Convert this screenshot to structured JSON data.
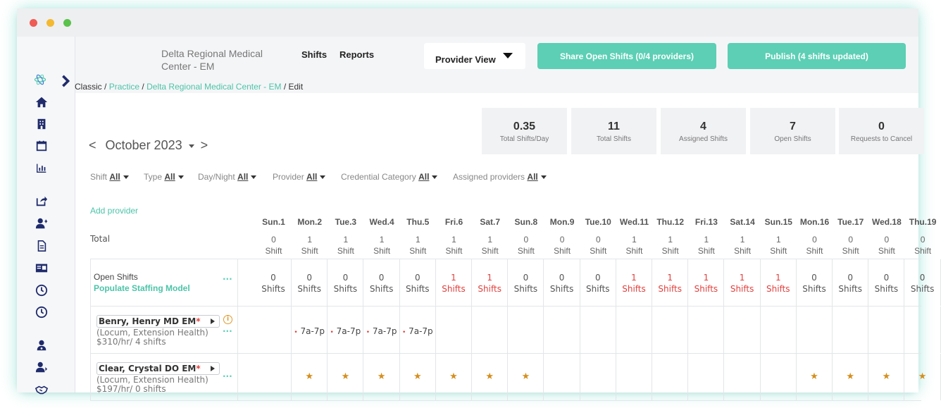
{
  "window_dots": [
    "#ee5c54",
    "#f3b930",
    "#59c24a"
  ],
  "header": {
    "org_name": "Delta Regional Medical Center - EM",
    "nav": [
      "Shifts",
      "Reports"
    ],
    "view_select": "Provider View",
    "share_button": "Share Open Shifts (0/4 providers)",
    "publish_button": "Publish (4 shifts updated)"
  },
  "breadcrumb": {
    "root": "Classic",
    "sep": " / ",
    "practice": "Practice",
    "center": "Delta Regional Medical Center - EM",
    "current": "Edit"
  },
  "stats": [
    {
      "value": "0.35",
      "label": "Total Shifts/Day"
    },
    {
      "value": "11",
      "label": "Total Shifts"
    },
    {
      "value": "4",
      "label": "Assigned Shifts"
    },
    {
      "value": "7",
      "label": "Open Shifts"
    },
    {
      "value": "0",
      "label": "Requests to Cancel"
    }
  ],
  "calendar": {
    "month": "October 2023",
    "prev": "<",
    "next": ">"
  },
  "filters": [
    {
      "label": "Shift",
      "value": "All"
    },
    {
      "label": "Type",
      "value": "All"
    },
    {
      "label": "Day/Night",
      "value": "All"
    },
    {
      "label": "Provider",
      "value": "All"
    },
    {
      "label": "Credential Category",
      "value": "All"
    },
    {
      "label": "Assigned providers",
      "value": "All"
    }
  ],
  "add_provider": "Add provider",
  "days": [
    "Sun.1",
    "Mon.2",
    "Tue.3",
    "Wed.4",
    "Thu.5",
    "Fri.6",
    "Sat.7",
    "Sun.8",
    "Mon.9",
    "Tue.10",
    "Wed.11",
    "Thu.12",
    "Fri.13",
    "Sat.14",
    "Sun.15",
    "Mon.16",
    "Tue.17",
    "Wed.18",
    "Thu.19"
  ],
  "totals": {
    "label": "Total",
    "values": [
      "0",
      "1",
      "1",
      "1",
      "1",
      "1",
      "1",
      "0",
      "0",
      "0",
      "1",
      "1",
      "1",
      "1",
      "1",
      "0",
      "0",
      "0",
      "0"
    ],
    "unit": "Shift"
  },
  "open_shifts": {
    "label": "Open Shifts",
    "action": "Populate Staffing Model",
    "more": "...",
    "values": [
      "0",
      "0",
      "0",
      "0",
      "0",
      "1",
      "1",
      "0",
      "0",
      "0",
      "1",
      "1",
      "1",
      "1",
      "1",
      "0",
      "0",
      "0",
      "0"
    ],
    "unit": "Shifts",
    "highlight_color": "#e0413e"
  },
  "providers": [
    {
      "name": "Benry, Henry MD EM",
      "required_mark": "*",
      "type": "(Locum, Extension Health)",
      "rate": "$310/hr/ 4 shifts",
      "more": "...",
      "info_icon": "info-circle-icon",
      "shift_text": "7a-7p",
      "shift_dot": "•",
      "shifts": [
        "",
        "7a-7p",
        "7a-7p",
        "7a-7p",
        "7a-7p",
        "",
        "",
        "",
        "",
        "",
        "",
        "",
        "",
        "",
        "",
        "",
        "",
        "",
        ""
      ]
    },
    {
      "name": "Clear, Crystal DO EM",
      "required_mark": "*",
      "type": "(Locum, Extension Health)",
      "rate": "$197/hr/ 0 shifts",
      "more": "...",
      "availability_icon": "star-icon",
      "availability": [
        false,
        true,
        true,
        true,
        true,
        true,
        true,
        true,
        false,
        false,
        false,
        false,
        false,
        false,
        false,
        true,
        true,
        true,
        true
      ]
    }
  ],
  "sidebar_icons": [
    "logo-icon",
    "expand-chevron-icon",
    "home-icon",
    "building-icon",
    "calendar-icon",
    "chart-icon",
    "share-icon",
    "add-user-icon",
    "document-icon",
    "id-card-icon",
    "clock-icon",
    "clock-icon",
    "doctor-icon",
    "user-arrow-icon",
    "handshake-icon"
  ]
}
